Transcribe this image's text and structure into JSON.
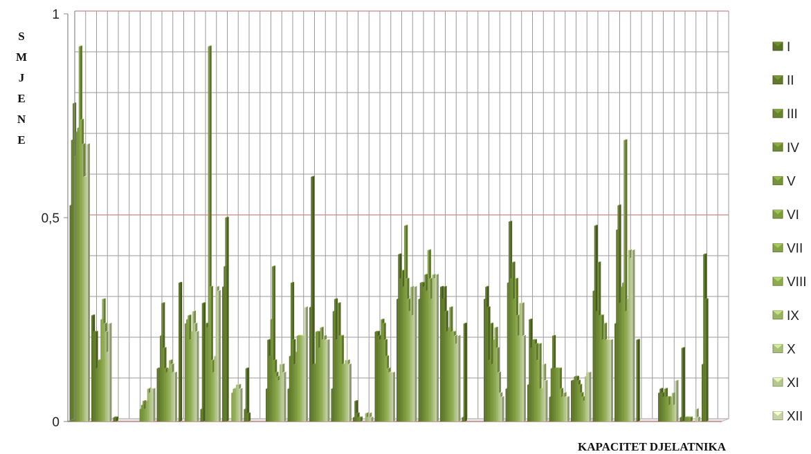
{
  "chart_data": {
    "type": "bar",
    "title": "",
    "ylabel_letters": [
      "S",
      "M",
      "J",
      "E",
      "N",
      "E"
    ],
    "xlabel": "KAPACITET DJELATNIKA",
    "ylim": [
      0,
      1
    ],
    "y_ticks": [
      "0",
      "0,5",
      "1"
    ],
    "y_tick_values": [
      0,
      0.5,
      1
    ],
    "grid": true,
    "legend_position": "right",
    "num_groups": 30,
    "series": [
      {
        "name": "I",
        "color": "#5a7326",
        "values": [
          0.53,
          0.26,
          0.01,
          0.0,
          0.13,
          0.34,
          0.03,
          0.33,
          0.03,
          0.08,
          0.08,
          0.28,
          0.08,
          0.01,
          0.22,
          0.3,
          0.3,
          0.33,
          0.01,
          0.3,
          0.08,
          0.09,
          0.06,
          0.1,
          0.32,
          0.24,
          0.2,
          0.07,
          0.01,
          0.14
        ]
      },
      {
        "name": "II",
        "color": "#617b2b",
        "values": [
          0.69,
          0.22,
          0.01,
          0.0,
          0.13,
          0.0,
          0.29,
          0.38,
          0.13,
          0.2,
          0.16,
          0.6,
          0.27,
          0.05,
          0.22,
          0.41,
          0.34,
          0.3,
          0.24,
          0.33,
          0.34,
          0.25,
          0.13,
          0.1,
          0.48,
          0.47,
          0.0,
          0.08,
          0.18,
          0.41
        ]
      },
      {
        "name": "III",
        "color": "#688330",
        "values": [
          0.78,
          0.22,
          0.0,
          0.0,
          0.21,
          0.0,
          0.0,
          0.5,
          0.02,
          0.16,
          0.34,
          0.14,
          0.3,
          0.02,
          0.21,
          0.35,
          0.34,
          0.33,
          0.0,
          0.28,
          0.49,
          0.18,
          0.21,
          0.11,
          0.27,
          0.53,
          0.0,
          0.07,
          0.0,
          0.3
        ]
      },
      {
        "name": "IV",
        "color": "#6f8b35",
        "values": [
          0.65,
          0.13,
          0.0,
          0.03,
          0.29,
          0.0,
          0.24,
          0.0,
          0.0,
          0.25,
          0.2,
          0.14,
          0.2,
          0.01,
          0.2,
          0.37,
          0.33,
          0.27,
          0.0,
          0.15,
          0.35,
          0.2,
          0.13,
          0.11,
          0.39,
          0.29,
          0.0,
          0.06,
          0.01,
          0.0
        ]
      },
      {
        "name": "V",
        "color": "#76933a",
        "values": [
          0.71,
          0.15,
          0.0,
          0.04,
          0.18,
          0.24,
          0.23,
          0.0,
          0.0,
          0.38,
          0.14,
          0.22,
          0.29,
          0.01,
          0.25,
          0.33,
          0.36,
          0.22,
          0.0,
          0.24,
          0.39,
          0.2,
          0.13,
          0.1,
          0.26,
          0.33,
          0.0,
          0.08,
          0.01,
          0.0
        ]
      },
      {
        "name": "VI",
        "color": "#7e9b40",
        "values": [
          0.72,
          0.15,
          0.0,
          0.05,
          0.13,
          0.25,
          0.92,
          0.0,
          0.0,
          0.15,
          0.17,
          0.22,
          0.21,
          0.0,
          0.24,
          0.48,
          0.32,
          0.23,
          0.0,
          0.14,
          0.3,
          0.19,
          0.13,
          0.09,
          0.26,
          0.34,
          0.0,
          0.06,
          0.01,
          0.0
        ]
      },
      {
        "name": "VII",
        "color": "#86a347",
        "values": [
          0.92,
          0.25,
          0.0,
          0.03,
          0.12,
          0.26,
          0.33,
          0.07,
          0.0,
          0.12,
          0.21,
          0.18,
          0.21,
          0.0,
          0.2,
          0.35,
          0.42,
          0.28,
          0.0,
          0.2,
          0.35,
          0.15,
          0.13,
          0.07,
          0.2,
          0.69,
          0.0,
          0.06,
          0.01,
          0.0
        ]
      },
      {
        "name": "VIII",
        "color": "#8fab52",
        "values": [
          0.74,
          0.3,
          0.0,
          0.05,
          0.13,
          0.2,
          0.15,
          0.08,
          0.0,
          0.11,
          0.21,
          0.23,
          0.14,
          0.0,
          0.16,
          0.3,
          0.35,
          0.22,
          0.0,
          0.23,
          0.26,
          0.19,
          0.08,
          0.06,
          0.24,
          0.27,
          0.0,
          0.04,
          0.0,
          0.0
        ]
      },
      {
        "name": "IX",
        "color": "#9bb464",
        "values": [
          0.68,
          0.24,
          0.0,
          0.08,
          0.15,
          0.22,
          0.12,
          0.08,
          0.0,
          0.1,
          0.21,
          0.2,
          0.14,
          0.02,
          0.13,
          0.27,
          0.3,
          0.22,
          0.0,
          0.18,
          0.21,
          0.08,
          0.06,
          0.05,
          0.2,
          0.3,
          0.0,
          0.06,
          0.0,
          0.0
        ]
      },
      {
        "name": "X",
        "color": "#a9be7b",
        "values": [
          0.6,
          0.22,
          0.0,
          0.07,
          0.14,
          0.27,
          0.16,
          0.09,
          0.0,
          0.14,
          0.21,
          0.21,
          0.15,
          0.01,
          0.12,
          0.33,
          0.36,
          0.21,
          0.0,
          0.12,
          0.29,
          0.08,
          0.07,
          0.11,
          0.2,
          0.42,
          0.0,
          0.07,
          0.0,
          0.0
        ]
      },
      {
        "name": "XI",
        "color": "#b6c88f",
        "values": [
          0.6,
          0.17,
          0.0,
          0.08,
          0.12,
          0.24,
          0.33,
          0.09,
          0.0,
          0.14,
          0.21,
          0.2,
          0.15,
          0.02,
          0.12,
          0.26,
          0.35,
          0.19,
          0.0,
          0.07,
          0.29,
          0.14,
          0.06,
          0.12,
          0.2,
          0.4,
          0.0,
          0.04,
          0.03,
          0.0
        ]
      },
      {
        "name": "XII",
        "color": "#c5d3a7",
        "values": [
          0.68,
          0.24,
          0.0,
          0.08,
          0.12,
          0.22,
          0.32,
          0.08,
          0.0,
          0.12,
          0.28,
          0.2,
          0.14,
          0.01,
          0.12,
          0.33,
          0.36,
          0.21,
          0.0,
          0.06,
          0.21,
          0.1,
          0.06,
          0.12,
          0.2,
          0.42,
          0.0,
          0.1,
          0.01,
          0.0
        ]
      }
    ]
  }
}
